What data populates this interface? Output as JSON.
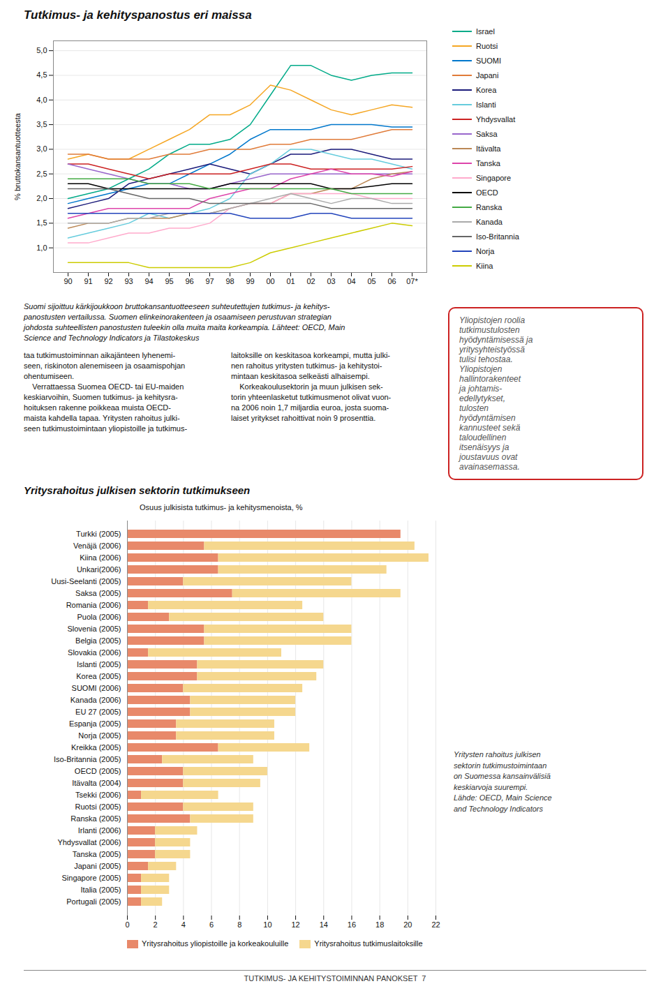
{
  "chart_data": [
    {
      "type": "line",
      "title": "Tutkimus- ja kehityspanostus eri maissa",
      "ylabel": "% bruttokansantuotteesta",
      "categories": [
        "90",
        "91",
        "92",
        "93",
        "94",
        "95",
        "96",
        "97",
        "98",
        "99",
        "00",
        "01",
        "02",
        "03",
        "04",
        "05",
        "06",
        "07*"
      ],
      "series": [
        {
          "name": "Israel",
          "color": "#00aa88",
          "values": [
            2.0,
            2.1,
            2.2,
            2.4,
            2.6,
            2.9,
            3.1,
            3.1,
            3.2,
            3.5,
            4.1,
            4.7,
            4.7,
            4.5,
            4.4,
            4.5,
            4.55,
            4.55
          ]
        },
        {
          "name": "Ruotsi",
          "color": "#f5a623",
          "values": [
            2.8,
            2.9,
            2.8,
            2.8,
            3.0,
            3.2,
            3.4,
            3.7,
            3.7,
            3.9,
            4.3,
            4.2,
            4.0,
            3.8,
            3.7,
            3.8,
            3.9,
            3.85
          ]
        },
        {
          "name": "SUOMI",
          "color": "#0077cc",
          "values": [
            1.9,
            2.0,
            2.1,
            2.2,
            2.3,
            2.3,
            2.5,
            2.7,
            2.9,
            3.2,
            3.4,
            3.4,
            3.4,
            3.5,
            3.5,
            3.5,
            3.45,
            3.45
          ]
        },
        {
          "name": "Japani",
          "color": "#e07b39",
          "values": [
            2.9,
            2.9,
            2.8,
            2.8,
            2.8,
            2.9,
            2.9,
            3.0,
            3.0,
            3.0,
            3.1,
            3.1,
            3.2,
            3.2,
            3.2,
            3.3,
            3.4,
            3.4
          ]
        },
        {
          "name": "Korea",
          "color": "#1a1a7a",
          "values": [
            1.8,
            1.9,
            2.0,
            2.3,
            2.4,
            2.5,
            2.6,
            2.7,
            2.6,
            2.5,
            2.7,
            2.9,
            2.9,
            3.0,
            3.0,
            2.9,
            2.8,
            2.8
          ]
        },
        {
          "name": "Islanti",
          "color": "#66ccdd",
          "values": [
            1.2,
            1.3,
            1.4,
            1.5,
            1.7,
            1.6,
            1.7,
            1.8,
            2.0,
            2.5,
            2.7,
            3.0,
            3.0,
            2.9,
            2.8,
            2.8,
            2.7,
            2.6
          ]
        },
        {
          "name": "Yhdysvallat",
          "color": "#cc2222",
          "values": [
            2.7,
            2.7,
            2.6,
            2.5,
            2.4,
            2.5,
            2.5,
            2.5,
            2.5,
            2.6,
            2.7,
            2.7,
            2.6,
            2.6,
            2.6,
            2.6,
            2.6,
            2.65
          ]
        },
        {
          "name": "Saksa",
          "color": "#9966cc",
          "values": [
            2.7,
            2.6,
            2.5,
            2.4,
            2.3,
            2.3,
            2.2,
            2.2,
            2.3,
            2.4,
            2.5,
            2.5,
            2.5,
            2.5,
            2.5,
            2.5,
            2.5,
            2.5
          ]
        },
        {
          "name": "Itävalta",
          "color": "#bb8855",
          "values": [
            1.4,
            1.5,
            1.5,
            1.6,
            1.6,
            1.6,
            1.7,
            1.7,
            1.8,
            1.9,
            1.9,
            2.1,
            2.1,
            2.2,
            2.2,
            2.4,
            2.5,
            2.55
          ]
        },
        {
          "name": "Tanska",
          "color": "#dd44aa",
          "values": [
            1.6,
            1.7,
            1.8,
            1.8,
            1.8,
            1.8,
            1.8,
            2.0,
            2.1,
            2.2,
            2.2,
            2.4,
            2.5,
            2.6,
            2.5,
            2.5,
            2.45,
            2.55
          ]
        },
        {
          "name": "Singapore",
          "color": "#ffaacc",
          "values": [
            1.1,
            1.1,
            1.2,
            1.3,
            1.3,
            1.4,
            1.4,
            1.5,
            1.8,
            1.9,
            1.9,
            2.1,
            2.1,
            2.1,
            2.1,
            2.0,
            2.0,
            2.0
          ]
        },
        {
          "name": "OECD",
          "color": "#000000",
          "values": [
            2.3,
            2.3,
            2.2,
            2.2,
            2.2,
            2.2,
            2.2,
            2.2,
            2.3,
            2.3,
            2.3,
            2.3,
            2.3,
            2.2,
            2.2,
            2.25,
            2.3,
            2.3
          ]
        },
        {
          "name": "Ranska",
          "color": "#44aa44",
          "values": [
            2.4,
            2.4,
            2.4,
            2.4,
            2.3,
            2.3,
            2.3,
            2.2,
            2.2,
            2.2,
            2.2,
            2.2,
            2.2,
            2.2,
            2.1,
            2.1,
            2.1,
            2.1
          ]
        },
        {
          "name": "Kanada",
          "color": "#aaaaaa",
          "values": [
            1.5,
            1.5,
            1.5,
            1.6,
            1.6,
            1.7,
            1.7,
            1.7,
            1.8,
            1.9,
            2.0,
            2.1,
            2.0,
            1.9,
            2.0,
            2.0,
            1.9,
            1.9
          ]
        },
        {
          "name": "Iso-Britannia",
          "color": "#666666",
          "values": [
            2.2,
            2.2,
            2.2,
            2.1,
            2.0,
            2.0,
            2.0,
            1.9,
            1.9,
            1.9,
            1.9,
            1.9,
            1.9,
            1.8,
            1.8,
            1.8,
            1.8,
            1.8
          ]
        },
        {
          "name": "Norja",
          "color": "#2244bb",
          "values": [
            1.7,
            1.7,
            1.7,
            1.7,
            1.7,
            1.7,
            1.7,
            1.7,
            1.7,
            1.6,
            1.6,
            1.6,
            1.7,
            1.7,
            1.6,
            1.6,
            1.6,
            1.6
          ]
        },
        {
          "name": "Kiina",
          "color": "#cccc00",
          "values": [
            0.7,
            0.7,
            0.7,
            0.7,
            0.6,
            0.6,
            0.6,
            0.6,
            0.6,
            0.7,
            0.9,
            1.0,
            1.1,
            1.2,
            1.3,
            1.4,
            1.5,
            1.45
          ]
        }
      ],
      "ylim": [
        0.5,
        5.2
      ],
      "yticks": [
        {
          "value": 1.0,
          "label": "1,0"
        },
        {
          "value": 1.5,
          "label": "1,5"
        },
        {
          "value": 2.0,
          "label": "2,0"
        },
        {
          "value": 2.5,
          "label": "2,5"
        },
        {
          "value": 3.0,
          "label": "3,0"
        },
        {
          "value": 3.5,
          "label": "3,5"
        },
        {
          "value": 4.0,
          "label": "4,0"
        },
        {
          "value": 4.5,
          "label": "4,5"
        },
        {
          "value": 5.0,
          "label": "5,0"
        }
      ],
      "grid": true,
      "legend": "right",
      "annotations": [
        [
          "Suomi sijoittuu kärkijoukkoon bruttokansantuotteeseen suhteutettujen tutkimus- ja kehitys-",
          "panostusten vertailussa. Suomen elinkeinorakenteen ja osaamiseen perustuvan strategian",
          "johdosta suhteellisten panostusten tuleekin olla muita maita korkeampia. Lähteet: OECD, Main",
          "Science and Technology Indicators ja Tilastokeskus"
        ],
        [
          "taa tutkimustoiminnan aikajänteen lyhenemi-",
          "seen, riskinoton alenemiseen ja osaamispohjan",
          "ohentumiseen.",
          "    Verrattaessa Suomea OECD- tai EU-maiden",
          "keskiarvoihin, Suomen tutkimus- ja kehitysra-",
          "hoituksen rakenne poikkeaa muista OECD-",
          "maista kahdella tapaa. Yritysten rahoitus julki-",
          "seen tutkimustoimintaan yliopistoille ja tutkimus-"
        ],
        [
          "laitoksille on keskitasoa korkeampi, mutta julki-",
          "nen rahoitus yritysten tutkimus- ja kehitystoi-",
          "mintaan keskitasoa selkeästi alhaisempi.",
          "    Korkeakoulusektorin ja muun julkisen sek-",
          "torin yhteenlasketut tutkimusmenot olivat vuon-",
          "na 2006 noin 1,7 miljardia euroa, josta suoma-",
          "laiset yritykset rahoittivat noin 9 prosenttia."
        ],
        [
          "Yliopistojen roolia",
          "tutkimustulosten",
          "hyödyntämisessä ja",
          "yritysyhteistyössä",
          "tulisi tehostaa.",
          "Yliopistojen",
          "hallintorakenteet",
          "ja johtamis-",
          "edellytykset,",
          "tulosten",
          "hyödyntämisen",
          "kannusteet sekä",
          "taloudellinen",
          "itsenäisyys ja",
          "joustavuus ovat",
          "avainasemassa."
        ]
      ]
    },
    {
      "type": "bar",
      "title": "Yritysrahoitus julkisen sektorin tutkimukseen",
      "subtitle": "Osuus julkisista tutkimus- ja kehitysmenoista, %",
      "orientation": "horizontal",
      "stacked": true,
      "categories": [
        "Turkki (2005)",
        "Venäjä (2006)",
        "Kiina (2006)",
        "Unkari(2006)",
        "Uusi-Seelanti (2005)",
        "Saksa (2005)",
        "Romania (2006)",
        "Puola (2006)",
        "Slovenia (2005)",
        "Belgia (2005)",
        "Slovakia (2006)",
        "Islanti (2005)",
        "Korea (2005)",
        "SUOMI (2006)",
        "Kanada (2006)",
        "EU 27 (2005)",
        "Espanja (2005)",
        "Norja (2005)",
        "Kreikka (2005)",
        "Iso-Britannia (2005)",
        "OECD (2005)",
        "Itävalta (2004)",
        "Tsekki (2006)",
        "Ruotsi (2005)",
        "Ranska (2005)",
        "Irlanti (2006)",
        "Yhdysvallat (2006)",
        "Tanska (2005)",
        "Japani (2005)",
        "Singapore (2005)",
        "Italia (2005)",
        "Portugali (2005)"
      ],
      "series": [
        {
          "name": "Yritysrahoitus yliopistoille ja korkeakouluille",
          "color": "#e8896a",
          "values": [
            19.5,
            5.5,
            6.5,
            6.5,
            4.0,
            7.5,
            1.5,
            3.0,
            5.5,
            5.5,
            1.5,
            5.0,
            5.0,
            4.0,
            4.5,
            4.5,
            3.5,
            3.5,
            6.5,
            2.5,
            4.0,
            4.0,
            1.0,
            4.0,
            4.5,
            2.0,
            2.0,
            2.0,
            1.5,
            1.0,
            1.0,
            1.0
          ]
        },
        {
          "name": "Yritysrahoitus tutkimuslaitoksille",
          "color": "#f5d78e",
          "values": [
            0.0,
            15.0,
            15.0,
            12.0,
            12.0,
            12.0,
            11.0,
            11.0,
            10.5,
            10.5,
            9.5,
            9.0,
            8.5,
            8.5,
            7.5,
            7.5,
            7.0,
            7.0,
            6.5,
            6.5,
            6.0,
            5.5,
            5.5,
            5.0,
            4.5,
            3.0,
            2.5,
            2.5,
            2.0,
            2.0,
            2.0,
            1.5
          ]
        }
      ],
      "xlim": [
        0,
        22
      ],
      "xticks": [
        0,
        2,
        4,
        6,
        8,
        10,
        12,
        14,
        16,
        18,
        20,
        22
      ],
      "grid": true,
      "legend": "bottom",
      "annotations": [
        [
          "Yritysten rahoitus julkisen",
          "sektorin tutkimustoimintaan",
          "on Suomessa kansainvälisiä",
          "keskiarvoja suurempi.",
          "Lähde: OECD, Main Science",
          "and Technology Indicators"
        ],
        [
          "TUTKIMUS- JA KEHITYSTOIMINNAN PANOKSET  7"
        ]
      ]
    }
  ]
}
